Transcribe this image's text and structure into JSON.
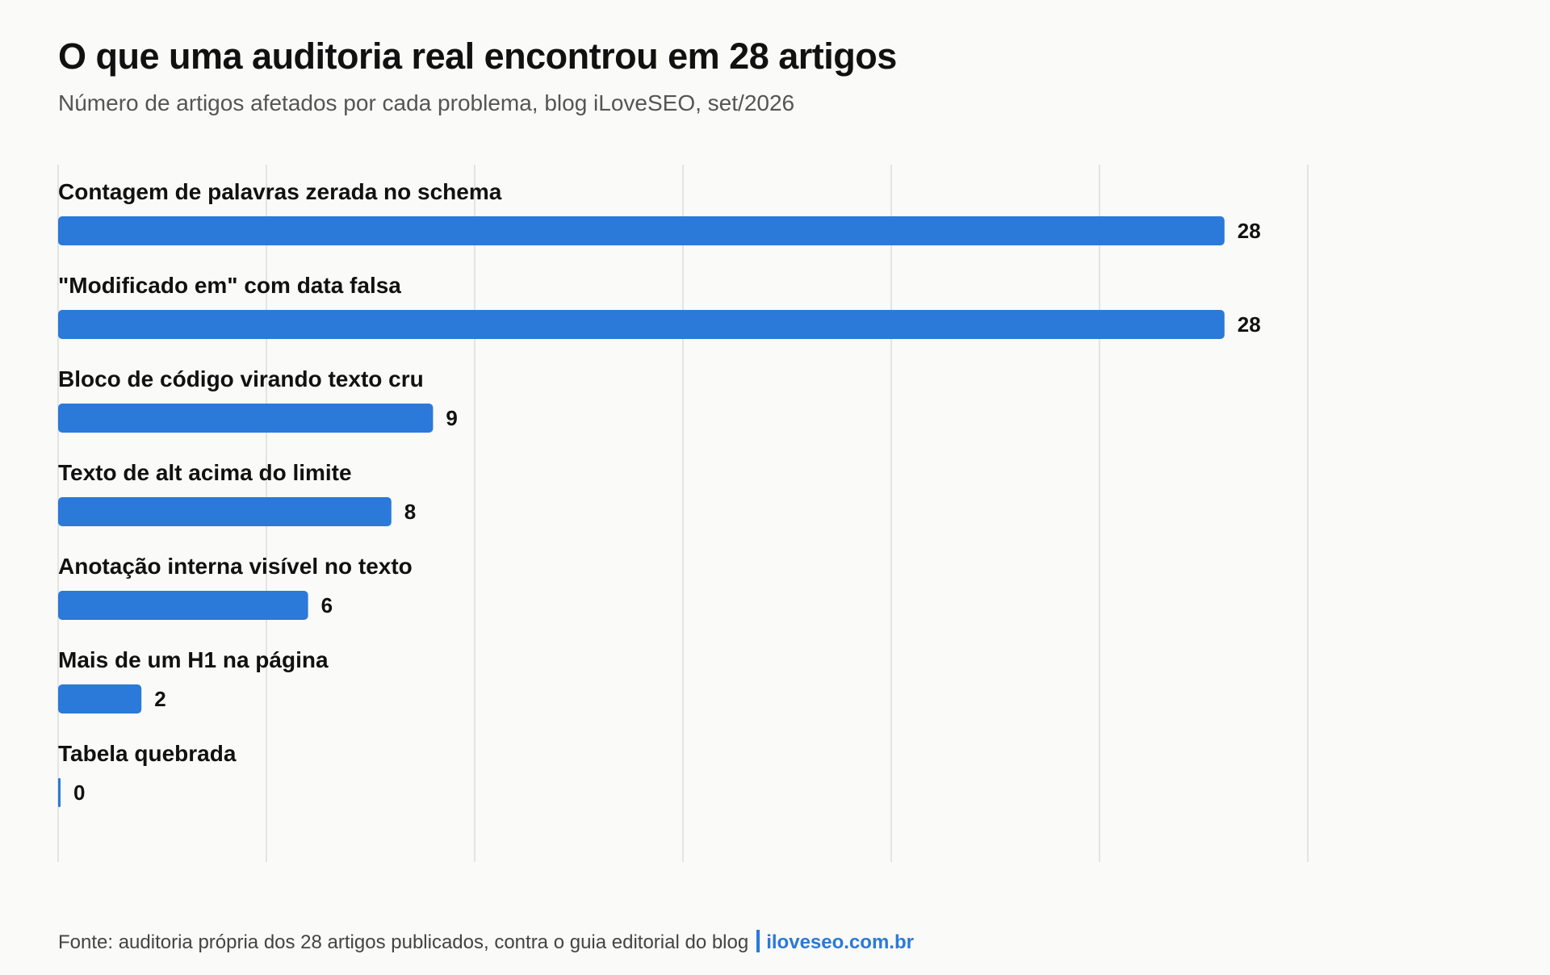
{
  "chart_data": {
    "type": "bar",
    "orientation": "horizontal",
    "title": "O que uma auditoria real encontrou em 28 artigos",
    "subtitle": "Número de artigos afetados por cada problema, blog iLoveSEO, set/2026",
    "categories": [
      "Contagem de palavras zerada no schema",
      "\"Modificado em\" com data falsa",
      "Bloco de código virando texto cru",
      "Texto de alt acima do limite",
      "Anotação interna visível no texto",
      "Mais de um H1 na página",
      "Tabela quebrada"
    ],
    "values": [
      28,
      28,
      9,
      8,
      6,
      2,
      0
    ],
    "xlim": [
      0,
      30
    ],
    "grid": true,
    "bar_color": "#2b79d8",
    "value_labels": true
  },
  "footer": {
    "source": "Fonte: auditoria própria dos 28 artigos publicados, contra o guia editorial do blog",
    "site": "iloveseo.com.br"
  }
}
